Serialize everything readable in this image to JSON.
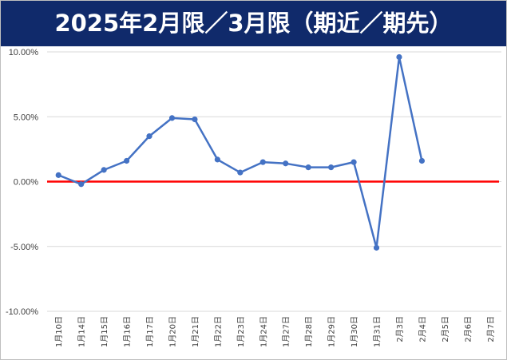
{
  "chart_data": {
    "type": "line",
    "title": "2025年2月限／3月限（期近／期先）",
    "categories": [
      "1月10日",
      "1月14日",
      "1月15日",
      "1月16日",
      "1月17日",
      "1月20日",
      "1月21日",
      "1月22日",
      "1月23日",
      "1月24日",
      "1月27日",
      "1月28日",
      "1月29日",
      "1月30日",
      "1月31日",
      "2月3日",
      "2月4日",
      "2月5日",
      "2月6日",
      "2月7日"
    ],
    "series": [
      {
        "values": [
          0.5,
          -0.2,
          0.9,
          1.6,
          3.5,
          4.9,
          4.8,
          1.7,
          0.7,
          1.5,
          1.4,
          1.1,
          1.1,
          1.5,
          -5.1,
          9.6,
          1.6,
          null,
          null,
          null
        ]
      }
    ],
    "ylim": [
      -10,
      10
    ],
    "yticks": [
      -10,
      -5,
      0,
      5,
      10
    ],
    "ytick_labels": [
      "-10.00%",
      "-5.00%",
      "0.00%",
      "5.00%",
      "10.00%"
    ],
    "reference_line": 0,
    "colors": {
      "series": "#4472c4",
      "reference_line": "#ff0000",
      "title_background": "#102a6b",
      "title_text": "#ffffff",
      "gridline": "#d9d9d9"
    },
    "grid": "horizontal",
    "xlabel": "",
    "ylabel": ""
  }
}
